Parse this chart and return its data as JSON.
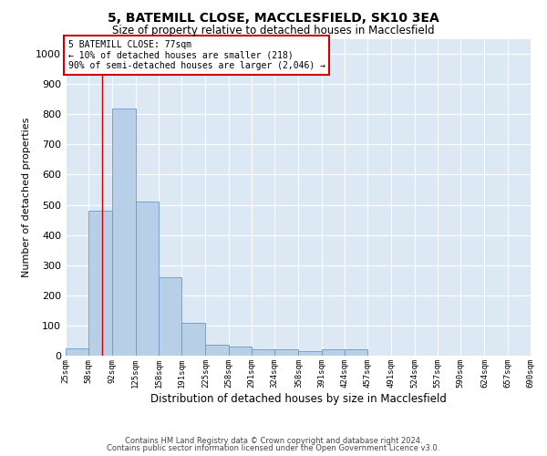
{
  "title1": "5, BATEMILL CLOSE, MACCLESFIELD, SK10 3EA",
  "title2": "Size of property relative to detached houses in Macclesfield",
  "xlabel": "Distribution of detached houses by size in Macclesfield",
  "ylabel": "Number of detached properties",
  "annotation_line1": "5 BATEMILL CLOSE: 77sqm",
  "annotation_line2": "← 10% of detached houses are smaller (218)",
  "annotation_line3": "90% of semi-detached houses are larger (2,046) →",
  "footer1": "Contains HM Land Registry data © Crown copyright and database right 2024.",
  "footer2": "Contains public sector information licensed under the Open Government Licence v3.0.",
  "bar_color": "#b8cfe8",
  "bar_edge_color": "#6699cc",
  "background_color": "#dde8f5",
  "grid_color": "#ffffff",
  "fig_color": "#ffffff",
  "annotation_box_color": "#ffffff",
  "annotation_box_edge": "#cc0000",
  "vline_color": "#cc0000",
  "bin_edges": [
    25,
    58,
    92,
    125,
    158,
    191,
    225,
    258,
    291,
    324,
    358,
    391,
    424,
    457,
    491,
    524,
    557,
    590,
    624,
    657,
    690
  ],
  "bar_heights": [
    25,
    480,
    820,
    510,
    260,
    110,
    35,
    30,
    20,
    20,
    15,
    20,
    20,
    0,
    0,
    0,
    0,
    0,
    0,
    0
  ],
  "vline_x": 77,
  "ylim": [
    0,
    1050
  ],
  "yticks": [
    0,
    100,
    200,
    300,
    400,
    500,
    600,
    700,
    800,
    900,
    1000
  ]
}
